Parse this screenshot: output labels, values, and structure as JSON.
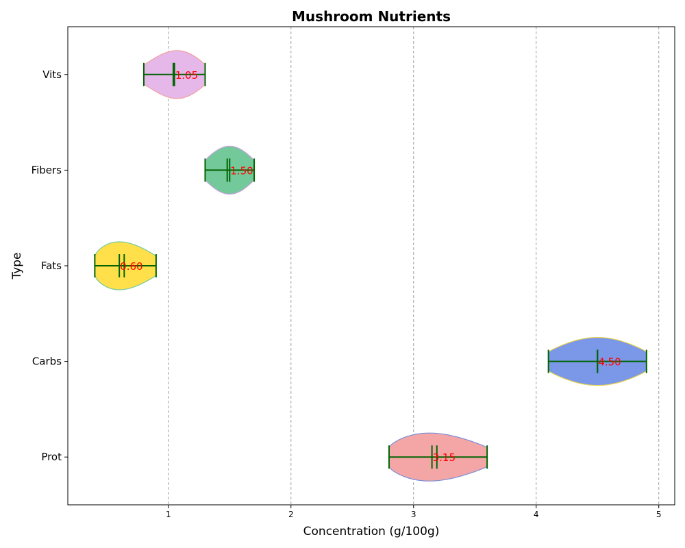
{
  "chart_data": {
    "type": "violin",
    "title": "Mushroom Nutrients",
    "xlabel": "Concentration (g/100g)",
    "ylabel": "Type",
    "xlim": [
      0.18,
      5.13
    ],
    "xticks": [
      "1",
      "2",
      "3",
      "4",
      "5"
    ],
    "categories": [
      "Prot",
      "Carbs",
      "Fats",
      "Fibers",
      "Vits"
    ],
    "grid": "x-dashed",
    "series": [
      {
        "category": "Prot",
        "min": 2.8,
        "max": 3.6,
        "mean": 3.15,
        "median": 3.19,
        "peak": 3.13,
        "label": "3.15",
        "fill": "#f4a6a6",
        "edge": "#7b8ed9"
      },
      {
        "category": "Carbs",
        "min": 4.1,
        "max": 4.9,
        "mean": 4.5,
        "median": 4.5,
        "peak": 4.5,
        "label": "4.50",
        "fill": "#7b97e8",
        "edge": "#e8d24a"
      },
      {
        "category": "Fats",
        "min": 0.4,
        "max": 0.9,
        "mean": 0.6,
        "median": 0.64,
        "peak": 0.6,
        "label": "0.60",
        "fill": "#ffe04a",
        "edge": "#74c99a"
      },
      {
        "category": "Fibers",
        "min": 1.3,
        "max": 1.7,
        "mean": 1.5,
        "median": 1.48,
        "peak": 1.5,
        "label": "1.50",
        "fill": "#74c99a",
        "edge": "#c8a0e0"
      },
      {
        "category": "Vits",
        "min": 0.8,
        "max": 1.3,
        "mean": 1.05,
        "median": 1.04,
        "peak": 1.07,
        "label": "1.05",
        "fill": "#e6b8ea",
        "edge": "#f0a0a0"
      }
    ],
    "colors": {
      "bars": "#006400",
      "value_label": "#ff0000",
      "grid": "#a0a0a0"
    }
  }
}
